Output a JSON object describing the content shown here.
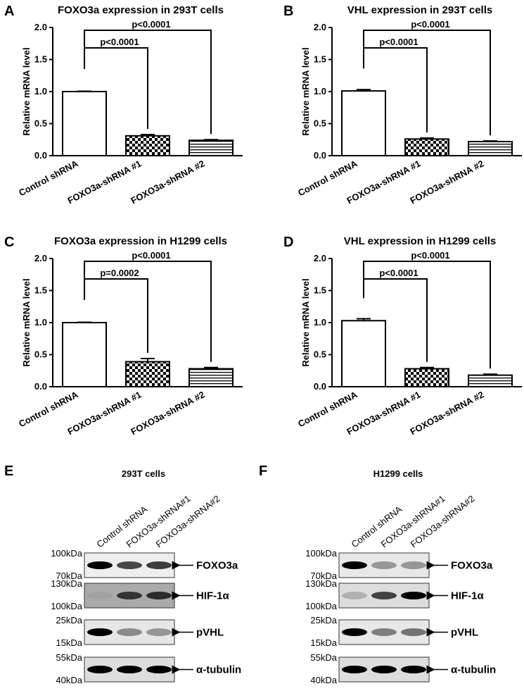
{
  "chart_data": [
    {
      "type": "bar",
      "letter": "A",
      "title": "FOXO3a expression in 293T cells",
      "y_label": "Relative mRNA level",
      "categories": [
        "Control shRNA",
        "FOXO3a-shRNA #1",
        "FOXO3a-shRNA #2"
      ],
      "values": [
        1.0,
        0.31,
        0.24
      ],
      "errors": [
        0.005,
        0.02,
        0.01
      ],
      "annotations": [
        "p<0.0001",
        "p<0.0001"
      ],
      "ylim": [
        0,
        2
      ],
      "yticks": [
        {
          "value": 0,
          "label": "0.0"
        },
        0.5,
        {
          "value": 1,
          "label": "1.0"
        },
        1.5,
        {
          "value": 2,
          "label": "2.0"
        }
      ]
    },
    {
      "type": "bar",
      "letter": "B",
      "title": "VHL expression in 293T cells",
      "y_label": "Relative mRNA level",
      "categories": [
        "Control shRNA",
        "FOXO3a-shRNA #1",
        "FOXO3a-shRNA #2"
      ],
      "values": [
        1.01,
        0.26,
        0.22
      ],
      "errors": [
        0.02,
        0.015,
        0.01
      ],
      "annotations": [
        "p<0.0001",
        "p<0.0001"
      ],
      "ylim": [
        0,
        2
      ],
      "yticks": [
        {
          "value": 0,
          "label": "0.0"
        },
        0.5,
        {
          "value": 1,
          "label": "1.0"
        },
        1.5,
        {
          "value": 2,
          "label": "2.0"
        }
      ]
    },
    {
      "type": "bar",
      "letter": "C",
      "title": "FOXO3a expression in H1299 cells",
      "y_label": "Relative mRNA level",
      "categories": [
        "Control shRNA",
        "FOXO3a-shRNA #1",
        "FOXO3a-shRNA #2"
      ],
      "values": [
        1.0,
        0.39,
        0.28
      ],
      "errors": [
        0.005,
        0.05,
        0.02
      ],
      "annotations": [
        "p=0.0002",
        "p<0.0001"
      ],
      "ylim": [
        0,
        2
      ],
      "yticks": [
        {
          "value": 0,
          "label": "0.0"
        },
        0.5,
        {
          "value": 1,
          "label": "1.0"
        },
        1.5,
        {
          "value": 2,
          "label": "2.0"
        }
      ]
    },
    {
      "type": "bar",
      "letter": "D",
      "title": "VHL expression in H1299 cells",
      "y_label": "Relative mRNA level",
      "categories": [
        "Control shRNA",
        "FOXO3a-shRNA #1",
        "FOXO3a-shRNA #2"
      ],
      "values": [
        1.03,
        0.28,
        0.18
      ],
      "errors": [
        0.03,
        0.02,
        0.015
      ],
      "annotations": [
        "p<0.0001",
        "p<0.0001"
      ],
      "ylim": [
        0,
        2
      ],
      "yticks": [
        {
          "value": 0,
          "label": "0.0"
        },
        0.5,
        {
          "value": 1,
          "label": "1.0"
        },
        1.5,
        {
          "value": 2,
          "label": "2.0"
        }
      ]
    }
  ],
  "blots": [
    {
      "letter": "E",
      "title": "293T cells",
      "lanes": [
        "Control shRNA",
        "FOXO3a-shRNA#1",
        "FOXO3a-shRNA#2"
      ],
      "rows": [
        {
          "markers": [
            "100kDa",
            "70kDa"
          ],
          "protein": "FOXO3a"
        },
        {
          "markers": [
            "130kDa",
            "100kDa"
          ],
          "protein": "HIF-1α"
        },
        {
          "markers": [
            "25kDa",
            "15kDa"
          ],
          "protein": "pVHL"
        },
        {
          "markers": [
            "55kDa",
            "40kDa"
          ],
          "protein": "α-tubulin"
        }
      ]
    },
    {
      "letter": "F",
      "title": "H1299 cells",
      "lanes": [
        "Control shRNA",
        "FOXO3a-shRNA#1",
        "FOXO3a-shRNA#2"
      ],
      "rows": [
        {
          "markers": [
            "100kDa",
            "70kDa"
          ],
          "protein": "FOXO3a"
        },
        {
          "markers": [
            "130kDa",
            "100kDa"
          ],
          "protein": "HIF-1α"
        },
        {
          "markers": [
            "25kDa",
            "15kDa"
          ],
          "protein": "pVHL"
        },
        {
          "markers": [
            "55kDa",
            "40kDa"
          ],
          "protein": "α-tubulin"
        }
      ]
    }
  ]
}
